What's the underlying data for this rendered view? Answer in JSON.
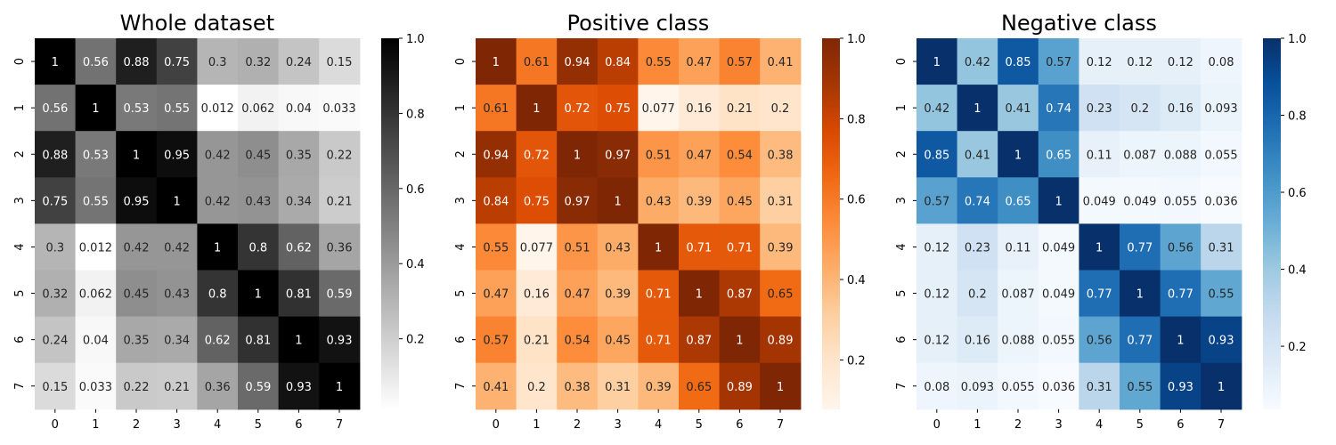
{
  "chart_data": [
    {
      "type": "heatmap",
      "title": "Whole dataset",
      "xlabels": [
        "0",
        "1",
        "2",
        "3",
        "4",
        "5",
        "6",
        "7"
      ],
      "ylabels": [
        "0",
        "1",
        "2",
        "3",
        "4",
        "5",
        "6",
        "7"
      ],
      "annotations": [
        [
          "1",
          "0.56",
          "0.88",
          "0.75",
          "0.3",
          "0.32",
          "0.24",
          "0.15"
        ],
        [
          "0.56",
          "1",
          "0.53",
          "0.55",
          "0.012",
          "0.062",
          "0.04",
          "0.033"
        ],
        [
          "0.88",
          "0.53",
          "1",
          "0.95",
          "0.42",
          "0.45",
          "0.35",
          "0.22"
        ],
        [
          "0.75",
          "0.55",
          "0.95",
          "1",
          "0.42",
          "0.43",
          "0.34",
          "0.21"
        ],
        [
          "0.3",
          "0.012",
          "0.42",
          "0.42",
          "1",
          "0.8",
          "0.62",
          "0.36"
        ],
        [
          "0.32",
          "0.062",
          "0.45",
          "0.43",
          "0.8",
          "1",
          "0.81",
          "0.59"
        ],
        [
          "0.24",
          "0.04",
          "0.35",
          "0.34",
          "0.62",
          "0.81",
          "1",
          "0.93"
        ],
        [
          "0.15",
          "0.033",
          "0.22",
          "0.21",
          "0.36",
          "0.59",
          "0.93",
          "1"
        ]
      ],
      "colormap": "gray_r",
      "colormap_stops": [
        "#ffffff",
        "#000000"
      ],
      "vmin": 0.012,
      "vmax": 1.0,
      "colorbar_ticks": [
        "0.2",
        "0.4",
        "0.6",
        "0.8",
        "1.0"
      ]
    },
    {
      "type": "heatmap",
      "title": "Positive class",
      "xlabels": [
        "0",
        "1",
        "2",
        "3",
        "4",
        "5",
        "6",
        "7"
      ],
      "ylabels": [
        "0",
        "1",
        "2",
        "3",
        "4",
        "5",
        "6",
        "7"
      ],
      "annotations": [
        [
          "1",
          "0.61",
          "0.94",
          "0.84",
          "0.55",
          "0.47",
          "0.57",
          "0.41"
        ],
        [
          "0.61",
          "1",
          "0.72",
          "0.75",
          "0.077",
          "0.16",
          "0.21",
          "0.2"
        ],
        [
          "0.94",
          "0.72",
          "1",
          "0.97",
          "0.51",
          "0.47",
          "0.54",
          "0.38"
        ],
        [
          "0.84",
          "0.75",
          "0.97",
          "1",
          "0.43",
          "0.39",
          "0.45",
          "0.31"
        ],
        [
          "0.55",
          "0.077",
          "0.51",
          "0.43",
          "1",
          "0.71",
          "0.71",
          "0.39"
        ],
        [
          "0.47",
          "0.16",
          "0.47",
          "0.39",
          "0.71",
          "1",
          "0.87",
          "0.65"
        ],
        [
          "0.57",
          "0.21",
          "0.54",
          "0.45",
          "0.71",
          "0.87",
          "1",
          "0.89"
        ],
        [
          "0.41",
          "0.2",
          "0.38",
          "0.31",
          "0.39",
          "0.65",
          "0.89",
          "1"
        ]
      ],
      "colormap": "Oranges",
      "colormap_stops": [
        "#fff5eb",
        "#fee6ce",
        "#fdd0a2",
        "#fdae6b",
        "#fd8d3c",
        "#f16913",
        "#d94801",
        "#a63603",
        "#7f2704"
      ],
      "vmin": 0.077,
      "vmax": 1.0,
      "colorbar_ticks": [
        "0.2",
        "0.4",
        "0.6",
        "0.8",
        "1.0"
      ]
    },
    {
      "type": "heatmap",
      "title": "Negative class",
      "xlabels": [
        "0",
        "1",
        "2",
        "3",
        "4",
        "5",
        "6",
        "7"
      ],
      "ylabels": [
        "0",
        "1",
        "2",
        "3",
        "4",
        "5",
        "6",
        "7"
      ],
      "annotations": [
        [
          "1",
          "0.42",
          "0.85",
          "0.57",
          "0.12",
          "0.12",
          "0.12",
          "0.08"
        ],
        [
          "0.42",
          "1",
          "0.41",
          "0.74",
          "0.23",
          "0.2",
          "0.16",
          "0.093"
        ],
        [
          "0.85",
          "0.41",
          "1",
          "0.65",
          "0.11",
          "0.087",
          "0.088",
          "0.055"
        ],
        [
          "0.57",
          "0.74",
          "0.65",
          "1",
          "0.049",
          "0.049",
          "0.055",
          "0.036"
        ],
        [
          "0.12",
          "0.23",
          "0.11",
          "0.049",
          "1",
          "0.77",
          "0.56",
          "0.31"
        ],
        [
          "0.12",
          "0.2",
          "0.087",
          "0.049",
          "0.77",
          "1",
          "0.77",
          "0.55"
        ],
        [
          "0.12",
          "0.16",
          "0.088",
          "0.055",
          "0.56",
          "0.77",
          "1",
          "0.93"
        ],
        [
          "0.08",
          "0.093",
          "0.055",
          "0.036",
          "0.31",
          "0.55",
          "0.93",
          "1"
        ]
      ],
      "colormap": "Blues",
      "colormap_stops": [
        "#f7fbff",
        "#deebf7",
        "#c6dbef",
        "#9ecae1",
        "#6baed6",
        "#4292c6",
        "#2171b5",
        "#08519c",
        "#08306b"
      ],
      "vmin": 0.036,
      "vmax": 1.0,
      "colorbar_ticks": [
        "0.2",
        "0.4",
        "0.6",
        "0.8",
        "1.0"
      ]
    }
  ]
}
